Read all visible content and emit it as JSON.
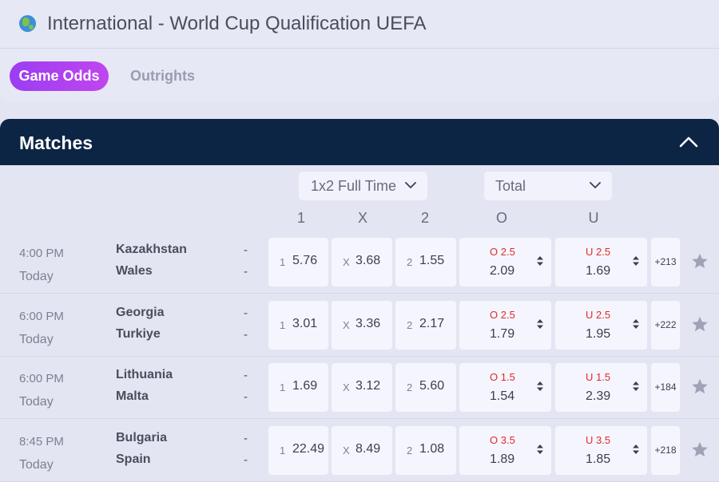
{
  "page": {
    "title": "International - World Cup Qualification UEFA"
  },
  "tabs": [
    {
      "label": "Game Odds"
    },
    {
      "label": "Outrights"
    }
  ],
  "section": {
    "title": "Matches"
  },
  "markets": {
    "main": "1x2 Full Time",
    "secondary": "Total"
  },
  "columns": {
    "home": "1",
    "draw": "X",
    "away": "2",
    "over": "O",
    "under": "U"
  },
  "matches": [
    {
      "time": "4:00 PM",
      "day": "Today",
      "home": "Kazakhstan",
      "away": "Wales",
      "home_score": "-",
      "away_score": "-",
      "odds": {
        "l1": "1",
        "v1": "5.76",
        "lx": "X",
        "vx": "3.68",
        "l2": "2",
        "v2": "1.55"
      },
      "over": {
        "line": "O 2.5",
        "odds": "2.09"
      },
      "under": {
        "line": "U 2.5",
        "odds": "1.69"
      },
      "more": "+213"
    },
    {
      "time": "6:00 PM",
      "day": "Today",
      "home": "Georgia",
      "away": "Turkiye",
      "home_score": "-",
      "away_score": "-",
      "odds": {
        "l1": "1",
        "v1": "3.01",
        "lx": "X",
        "vx": "3.36",
        "l2": "2",
        "v2": "2.17"
      },
      "over": {
        "line": "O 2.5",
        "odds": "1.79"
      },
      "under": {
        "line": "U 2.5",
        "odds": "1.95"
      },
      "more": "+222"
    },
    {
      "time": "6:00 PM",
      "day": "Today",
      "home": "Lithuania",
      "away": "Malta",
      "home_score": "-",
      "away_score": "-",
      "odds": {
        "l1": "1",
        "v1": "1.69",
        "lx": "X",
        "vx": "3.12",
        "l2": "2",
        "v2": "5.60"
      },
      "over": {
        "line": "O 1.5",
        "odds": "1.54"
      },
      "under": {
        "line": "U 1.5",
        "odds": "2.39"
      },
      "more": "+184"
    },
    {
      "time": "8:45 PM",
      "day": "Today",
      "home": "Bulgaria",
      "away": "Spain",
      "home_score": "-",
      "away_score": "-",
      "odds": {
        "l1": "1",
        "v1": "22.49",
        "lx": "X",
        "vx": "8.49",
        "l2": "2",
        "v2": "1.08"
      },
      "over": {
        "line": "O 3.5",
        "odds": "1.89"
      },
      "under": {
        "line": "U 3.5",
        "odds": "1.85"
      },
      "more": "+218"
    }
  ],
  "colors": {
    "header_bg": "#0c2544",
    "accent_start": "#9b3df2",
    "accent_end": "#c046ee",
    "line_red": "#e02a2a",
    "page_bg": "#e3e5f3"
  }
}
